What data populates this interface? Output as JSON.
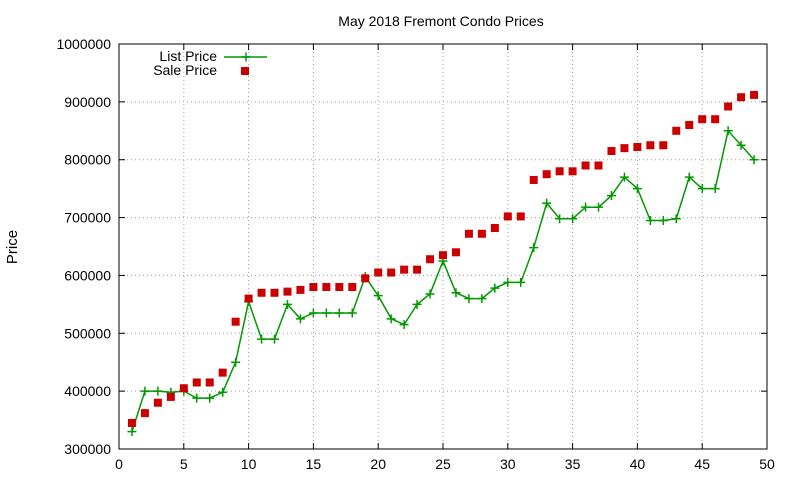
{
  "chart_data": {
    "type": "line",
    "title": "May 2018 Fremont Condo Prices",
    "xlabel": "",
    "ylabel": "Price",
    "xlim": [
      0,
      50
    ],
    "ylim": [
      300000,
      1000000
    ],
    "xticks": [
      0,
      5,
      10,
      15,
      20,
      25,
      30,
      35,
      40,
      45,
      50
    ],
    "yticks": [
      300000,
      400000,
      500000,
      600000,
      700000,
      800000,
      900000,
      1000000
    ],
    "grid": true,
    "legend": "top-left",
    "series": [
      {
        "name": "List Price",
        "style": "line-plus",
        "color": "#009900",
        "x": [
          1,
          2,
          3,
          4,
          5,
          6,
          7,
          8,
          9,
          10,
          11,
          12,
          13,
          14,
          15,
          16,
          17,
          18,
          19,
          20,
          21,
          22,
          23,
          24,
          25,
          26,
          27,
          28,
          29,
          30,
          31,
          32,
          33,
          34,
          35,
          36,
          37,
          38,
          39,
          40,
          41,
          42,
          43,
          44,
          45,
          46,
          47,
          48,
          49
        ],
        "y": [
          330000,
          400000,
          400000,
          398000,
          400000,
          388000,
          388000,
          398000,
          450000,
          555000,
          490000,
          490000,
          550000,
          525000,
          535000,
          535000,
          535000,
          535000,
          598000,
          565000,
          525000,
          515000,
          550000,
          568000,
          625000,
          570000,
          560000,
          560000,
          578000,
          588000,
          588000,
          648000,
          725000,
          698000,
          698000,
          718000,
          718000,
          738000,
          770000,
          750000,
          695000,
          695000,
          698000,
          770000,
          750000,
          750000,
          850000,
          825000,
          800000
        ]
      },
      {
        "name": "Sale Price",
        "style": "points-square",
        "color": "#cc0000",
        "x": [
          1,
          2,
          3,
          4,
          5,
          6,
          7,
          8,
          9,
          10,
          11,
          12,
          13,
          14,
          15,
          16,
          17,
          18,
          19,
          20,
          21,
          22,
          23,
          24,
          25,
          26,
          27,
          28,
          29,
          30,
          31,
          32,
          33,
          34,
          35,
          36,
          37,
          38,
          39,
          40,
          41,
          42,
          43,
          44,
          45,
          46,
          47,
          48,
          49
        ],
        "y": [
          345000,
          362000,
          380000,
          390000,
          405000,
          415000,
          415000,
          432000,
          520000,
          560000,
          570000,
          570000,
          572000,
          575000,
          580000,
          580000,
          580000,
          580000,
          595000,
          605000,
          605000,
          610000,
          610000,
          628000,
          635000,
          640000,
          672000,
          672000,
          682000,
          702000,
          702000,
          765000,
          775000,
          780000,
          780000,
          790000,
          790000,
          815000,
          820000,
          822000,
          825000,
          825000,
          850000,
          860000,
          870000,
          870000,
          892000,
          908000,
          912000
        ]
      }
    ]
  }
}
